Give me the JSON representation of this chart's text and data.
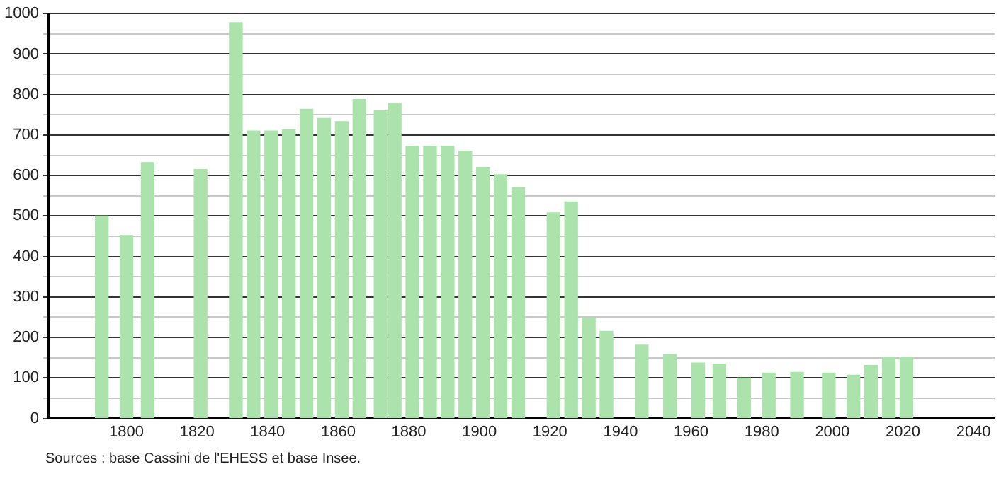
{
  "chart_data": {
    "type": "bar",
    "x": [
      1793,
      1800,
      1806,
      1821,
      1831,
      1836,
      1841,
      1846,
      1851,
      1856,
      1861,
      1866,
      1872,
      1876,
      1881,
      1886,
      1891,
      1896,
      1901,
      1906,
      1911,
      1921,
      1926,
      1931,
      1936,
      1946,
      1954,
      1962,
      1968,
      1975,
      1982,
      1990,
      1999,
      2006,
      2011,
      2016,
      2021
    ],
    "values": [
      500,
      452,
      632,
      615,
      978,
      710,
      710,
      713,
      764,
      741,
      733,
      788,
      760,
      778,
      672,
      672,
      672,
      660,
      620,
      602,
      570,
      508,
      535,
      248,
      215,
      181,
      158,
      137,
      134,
      100,
      112,
      114,
      112,
      107,
      131,
      151,
      151
    ],
    "color": "#ace3ac",
    "xlim": [
      1778,
      2046
    ],
    "xticks": [
      1800,
      1820,
      1840,
      1860,
      1880,
      1900,
      1920,
      1940,
      1960,
      1980,
      2000,
      2020,
      2040
    ],
    "ylim": [
      0,
      1000
    ],
    "yticks": [
      0,
      {
        "value": 50,
        "label": null
      },
      100,
      {
        "value": 150,
        "label": null
      },
      200,
      {
        "value": 250,
        "label": null
      },
      300,
      {
        "value": 350,
        "label": null
      },
      400,
      {
        "value": 450,
        "label": null
      },
      500,
      {
        "value": 550,
        "label": null
      },
      600,
      {
        "value": 650,
        "label": null
      },
      700,
      {
        "value": 750,
        "label": null
      },
      800,
      {
        "value": 850,
        "label": null
      },
      900,
      {
        "value": 950,
        "label": null
      },
      1000
    ],
    "grid": "y",
    "annotations": [
      "Sources : base Cassini de l'EHESS et base Insee."
    ]
  }
}
